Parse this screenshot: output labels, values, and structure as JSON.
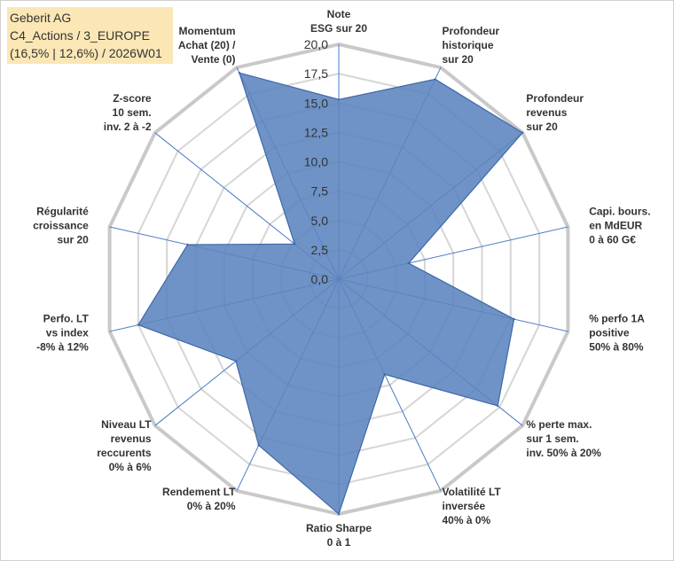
{
  "title": {
    "line1": "Geberit AG",
    "line2": "C4_Actions / 3_EUROPE",
    "line3": "(16,5% | 12,6%) / 2026W01"
  },
  "colors": {
    "fill": "#5b84be",
    "stroke": "#3e67a8",
    "grid_outer": "#c9c9c9",
    "grid": "#d6d6d6",
    "spoke": "#4a7cc4",
    "title_bg": "#fbe7b5"
  },
  "chart_data": {
    "type": "radar",
    "rmin": 0,
    "rmax": 20,
    "step": 2.5,
    "tick_labels": [
      "0,0",
      "2,5",
      "5,0",
      "7,5",
      "10,0",
      "12,5",
      "15,0",
      "17,5",
      "20,0"
    ],
    "categories": [
      [
        "Note",
        "ESG sur 20"
      ],
      [
        "Profondeur",
        "historique",
        "sur 20"
      ],
      [
        "Profondeur",
        "revenus",
        "sur 20"
      ],
      [
        "Capi. bours.",
        "en MdEUR",
        "0 à 60 G€"
      ],
      [
        "% perfo 1A",
        "positive",
        "50% à 80%"
      ],
      [
        "% perte max.",
        "sur 1 sem.",
        "inv. 50% à 20%"
      ],
      [
        "Volatilité LT",
        "inversée",
        "40% à 0%"
      ],
      [
        "Ratio Sharpe",
        "0 à 1"
      ],
      [
        "Rendement LT",
        "0% à 20%"
      ],
      [
        "Niveau LT",
        "revenus",
        "reccurents",
        "0% à 6%"
      ],
      [
        "Perfo. LT",
        "vs index",
        "-8% à 12%"
      ],
      [
        "Régularité",
        "croissance",
        "sur 20"
      ],
      [
        "Z-score",
        "10 sem.",
        "inv. 2 à -2"
      ],
      [
        "Momentum",
        "Achat (20) /",
        "Vente (0)"
      ]
    ],
    "series": [
      {
        "name": "Geberit AG",
        "values": [
          15.3,
          18.9,
          20.0,
          6.1,
          15.3,
          17.3,
          9.0,
          20.0,
          15.7,
          11.2,
          17.5,
          13.2,
          4.8,
          19.5
        ]
      }
    ]
  }
}
